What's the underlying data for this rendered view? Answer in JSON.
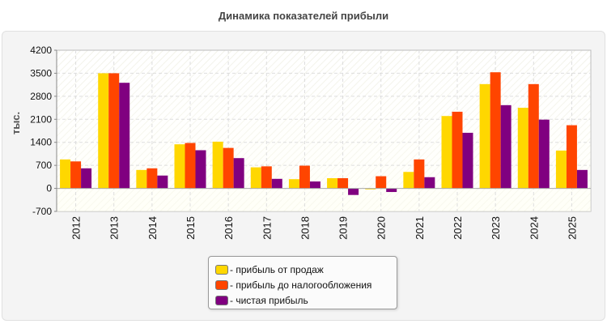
{
  "chart_data": {
    "type": "bar",
    "title": "Динамика показателей прибыли",
    "ylabel": "тыс.",
    "xlabel": "",
    "categories": [
      "2012",
      "2013",
      "2014",
      "2015",
      "2016",
      "2017",
      "2018",
      "2019",
      "2020",
      "2021",
      "2022",
      "2023",
      "2024",
      "2025"
    ],
    "ylim": [
      -700,
      4200
    ],
    "yticks": [
      -700,
      0,
      700,
      1400,
      2100,
      2800,
      3500,
      4200
    ],
    "grid": true,
    "legend_position": "bottom-center",
    "series": [
      {
        "name": "- прибыль от продаж",
        "color": "#FFD700",
        "values": [
          880,
          3500,
          560,
          1340,
          1420,
          640,
          280,
          310,
          -30,
          500,
          2200,
          3170,
          2450,
          1150
        ]
      },
      {
        "name": "- прибыль до налогообложения",
        "color": "#FF4500",
        "values": [
          820,
          3500,
          610,
          1380,
          1230,
          670,
          690,
          310,
          370,
          880,
          2330,
          3530,
          3170,
          1920
        ]
      },
      {
        "name": "- чистая прибыль",
        "color": "#800080",
        "values": [
          610,
          3210,
          390,
          1160,
          920,
          290,
          210,
          -200,
          -110,
          340,
          1690,
          2530,
          2090,
          560
        ]
      }
    ]
  }
}
